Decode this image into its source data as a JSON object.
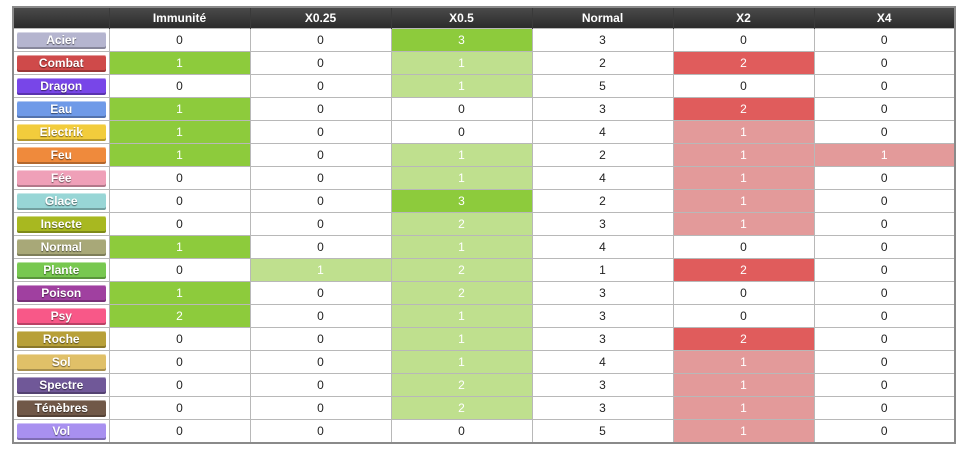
{
  "table": {
    "columns": [
      "",
      "Immunité",
      "X0.25",
      "X0.5",
      "Normal",
      "X2",
      "X4"
    ],
    "rows": [
      {
        "type": "Acier",
        "color": "#b5b5cf",
        "values": [
          "0",
          "0",
          "3",
          "3",
          "0",
          "0"
        ]
      },
      {
        "type": "Combat",
        "color": "#cf4a4a",
        "values": [
          "1",
          "0",
          "1",
          "2",
          "2",
          "0"
        ]
      },
      {
        "type": "Dragon",
        "color": "#7846e8",
        "values": [
          "0",
          "0",
          "1",
          "5",
          "0",
          "0"
        ]
      },
      {
        "type": "Eau",
        "color": "#6f9ae8",
        "values": [
          "1",
          "0",
          "0",
          "3",
          "2",
          "0"
        ]
      },
      {
        "type": "Electrik",
        "color": "#f2cc3c",
        "values": [
          "1",
          "0",
          "0",
          "4",
          "1",
          "0"
        ]
      },
      {
        "type": "Feu",
        "color": "#ef8a3c",
        "values": [
          "1",
          "0",
          "1",
          "2",
          "1",
          "1"
        ]
      },
      {
        "type": "Fée",
        "color": "#efa0b8",
        "values": [
          "0",
          "0",
          "1",
          "4",
          "1",
          "0"
        ]
      },
      {
        "type": "Glace",
        "color": "#98d6d6",
        "values": [
          "0",
          "0",
          "3",
          "2",
          "1",
          "0"
        ]
      },
      {
        "type": "Insecte",
        "color": "#a8b820",
        "values": [
          "0",
          "0",
          "2",
          "3",
          "1",
          "0"
        ]
      },
      {
        "type": "Normal",
        "color": "#a8a878",
        "values": [
          "1",
          "0",
          "1",
          "4",
          "0",
          "0"
        ]
      },
      {
        "type": "Plante",
        "color": "#78c850",
        "values": [
          "0",
          "1",
          "2",
          "1",
          "2",
          "0"
        ]
      },
      {
        "type": "Poison",
        "color": "#a040a0",
        "values": [
          "1",
          "0",
          "2",
          "3",
          "0",
          "0"
        ]
      },
      {
        "type": "Psy",
        "color": "#f85888",
        "values": [
          "2",
          "0",
          "1",
          "3",
          "0",
          "0"
        ]
      },
      {
        "type": "Roche",
        "color": "#b8a038",
        "values": [
          "0",
          "0",
          "1",
          "3",
          "2",
          "0"
        ]
      },
      {
        "type": "Sol",
        "color": "#e0c068",
        "values": [
          "0",
          "0",
          "1",
          "4",
          "1",
          "0"
        ]
      },
      {
        "type": "Spectre",
        "color": "#705898",
        "values": [
          "0",
          "0",
          "2",
          "3",
          "1",
          "0"
        ]
      },
      {
        "type": "Ténèbres",
        "color": "#705848",
        "values": [
          "0",
          "0",
          "2",
          "3",
          "1",
          "0"
        ]
      },
      {
        "type": "Vol",
        "color": "#a890f0",
        "values": [
          "0",
          "0",
          "0",
          "5",
          "1",
          "0"
        ]
      }
    ]
  },
  "colors": {
    "strong_green": "#8dcb3c",
    "light_green": "#bfe08e",
    "strong_red": "#e05c5c",
    "light_red": "#e39a9a",
    "header_bg": "#333333"
  }
}
